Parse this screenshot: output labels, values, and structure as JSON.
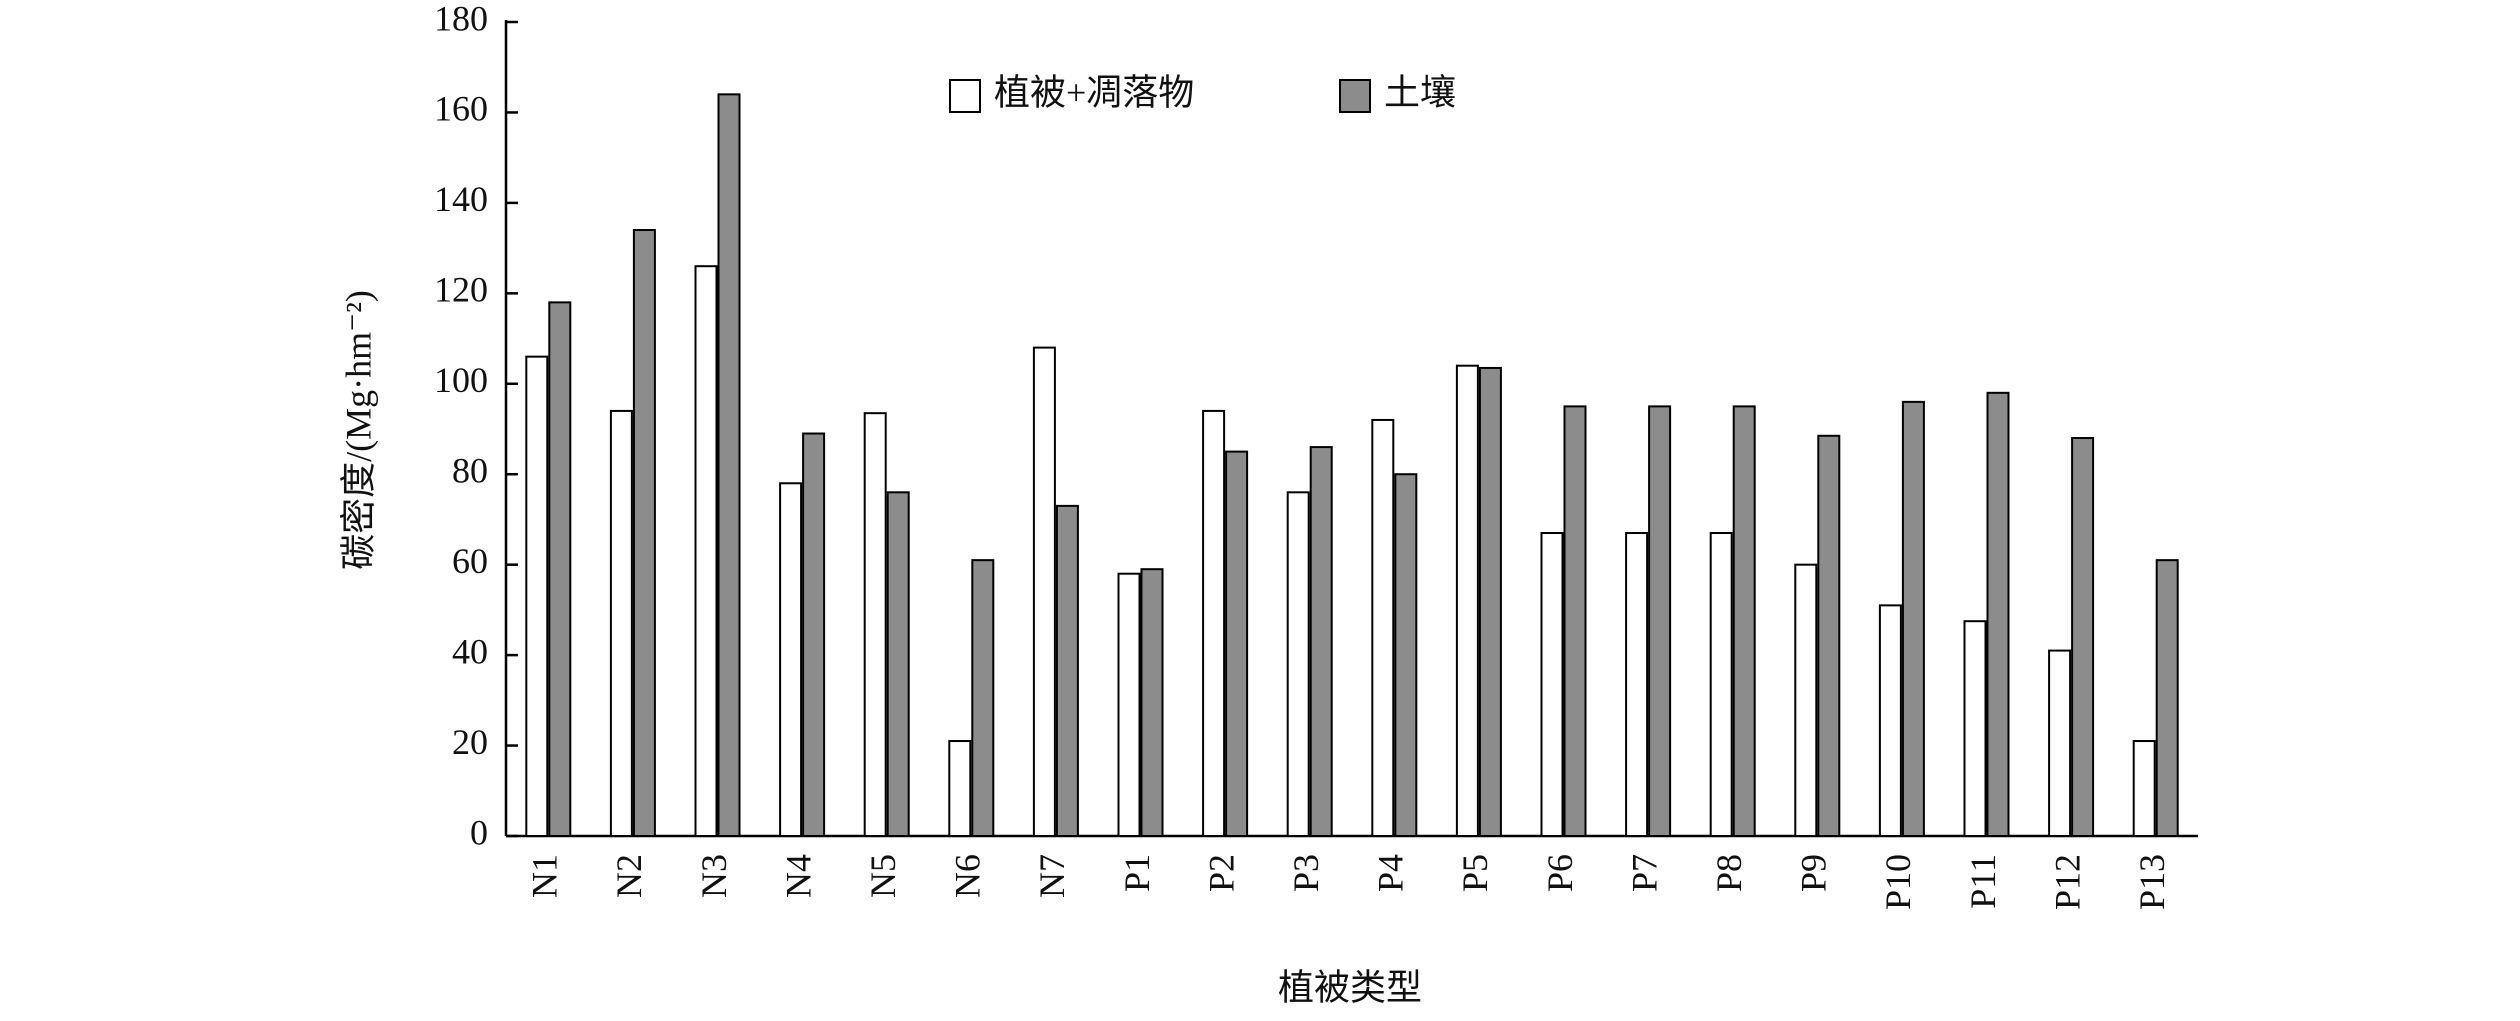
{
  "chart_data": {
    "type": "bar",
    "x_label": "植被类型",
    "y_label": "碳密度/(Mg·hm⁻²)",
    "categories": [
      "N1",
      "N2",
      "N3",
      "N4",
      "N5",
      "N6",
      "N7",
      "P1",
      "P2",
      "P3",
      "P4",
      "P5",
      "P6",
      "P7",
      "P8",
      "P9",
      "P10",
      "P11",
      "P12",
      "P13"
    ],
    "series": [
      {
        "name": "植被+凋落物",
        "color": "#ffffff",
        "values": [
          106,
          94,
          126,
          78,
          93.5,
          21,
          108,
          58,
          94,
          76,
          92,
          104,
          67,
          67,
          67,
          60,
          51,
          47.5,
          41,
          21
        ]
      },
      {
        "name": "土壤",
        "color": "#8c8c8c",
        "values": [
          118,
          134,
          164,
          89,
          76,
          61,
          73,
          59,
          85,
          86,
          80,
          103.5,
          95,
          95,
          95,
          88.5,
          96,
          98,
          88,
          61
        ]
      }
    ],
    "ylim": [
      0,
      180
    ],
    "yticks": [
      0,
      20,
      40,
      60,
      80,
      100,
      120,
      140,
      160,
      180
    ],
    "grid": false,
    "legend": "top"
  }
}
